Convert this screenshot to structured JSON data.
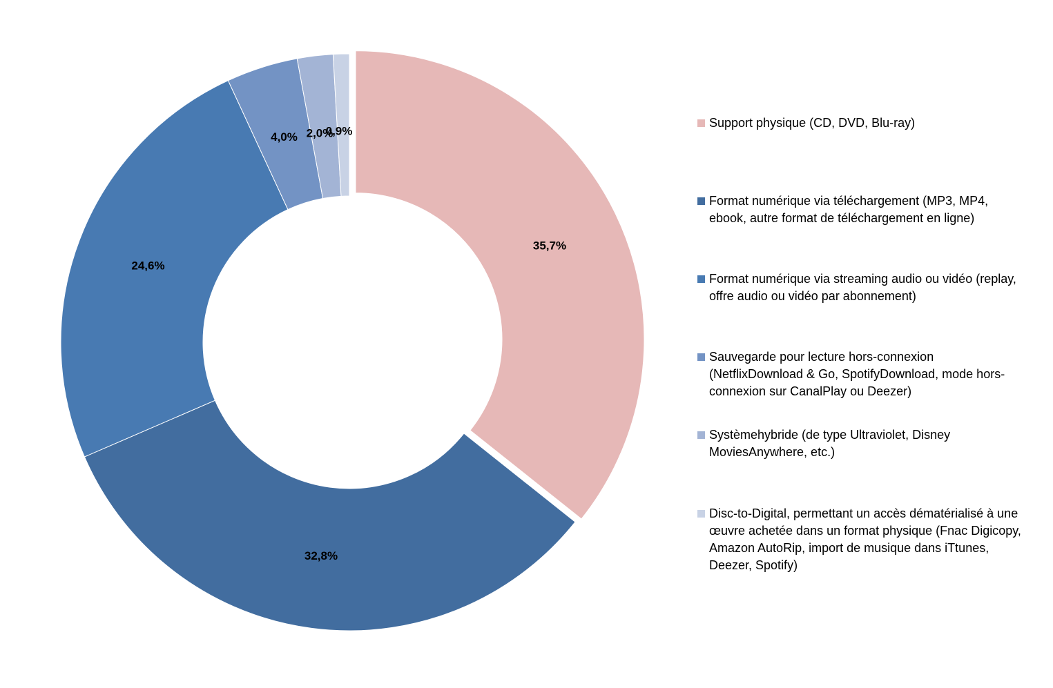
{
  "chart_data": {
    "type": "pie",
    "subtype": "donut",
    "title": "",
    "slices": [
      {
        "label": "Support physique (CD, DVD, Blu-ray)",
        "value": 35.7,
        "value_label": "35,7%",
        "color": "#e6b8b7",
        "exploded": true
      },
      {
        "label": "Format numérique via téléchargement (MP3, MP4, ebook, autre format de téléchargement en ligne)",
        "value": 32.8,
        "value_label": "32,8%",
        "color": "#426d9f"
      },
      {
        "label": "Format numérique via streaming audio ou vidéo (replay, offre audio ou vidéo par abonnement)",
        "value": 24.6,
        "value_label": "24,6%",
        "color": "#487ab2"
      },
      {
        "label": "Sauvegarde pour lecture hors-connexion (NetflixDownload & Go, SpotifyDownload, mode hors-connexion sur CanalPlay ou Deezer)",
        "value": 4.0,
        "value_label": "4,0%",
        "color": "#7393c4"
      },
      {
        "label": "Systèmehybride (de type Ultraviolet, Disney MoviesAnywhere, etc.)",
        "value": 2.0,
        "value_label": "2,0%",
        "color": "#a3b4d5"
      },
      {
        "label": "Disc-to-Digital, permettant un accès dématérialisé à une œuvre achetée dans un format physique (Fnac Digicopy, Amazon AutoRip, import de musique dans iTtunes, Deezer, Spotify)",
        "value": 0.9,
        "value_label": "0,9%",
        "color": "#c8d2e5"
      }
    ],
    "legend": {
      "position": "right",
      "items": [
        {
          "lines": [
            "Support physique (CD, DVD, Blu-ray)"
          ],
          "color": "#e6b8b7"
        },
        {
          "lines": [
            "Format numérique via téléchargement (MP3, MP4,",
            "ebook, autre format de téléchargement en ligne)"
          ],
          "color": "#426d9f"
        },
        {
          "lines": [
            "Format numérique via streaming audio ou vidéo (replay,",
            "offre audio ou vidéo par abonnement)"
          ],
          "color": "#487ab2"
        },
        {
          "lines": [
            "Sauvegarde pour lecture hors-connexion",
            "(NetflixDownload & Go, SpotifyDownload, mode hors-",
            "connexion sur CanalPlay ou Deezer)"
          ],
          "color": "#7393c4"
        },
        {
          "lines": [
            "Systèmehybride (de type Ultraviolet, Disney",
            "MoviesAnywhere, etc.)"
          ],
          "color": "#a3b4d5"
        },
        {
          "lines": [
            "Disc-to-Digital, permettant un accès dématérialisé à une",
            "œuvre achetée dans un format physique (Fnac Digicopy,",
            "Amazon AutoRip, import de musique dans iTtunes,",
            "Deezer, Spotify)"
          ],
          "color": "#c8d2e5"
        }
      ]
    }
  }
}
